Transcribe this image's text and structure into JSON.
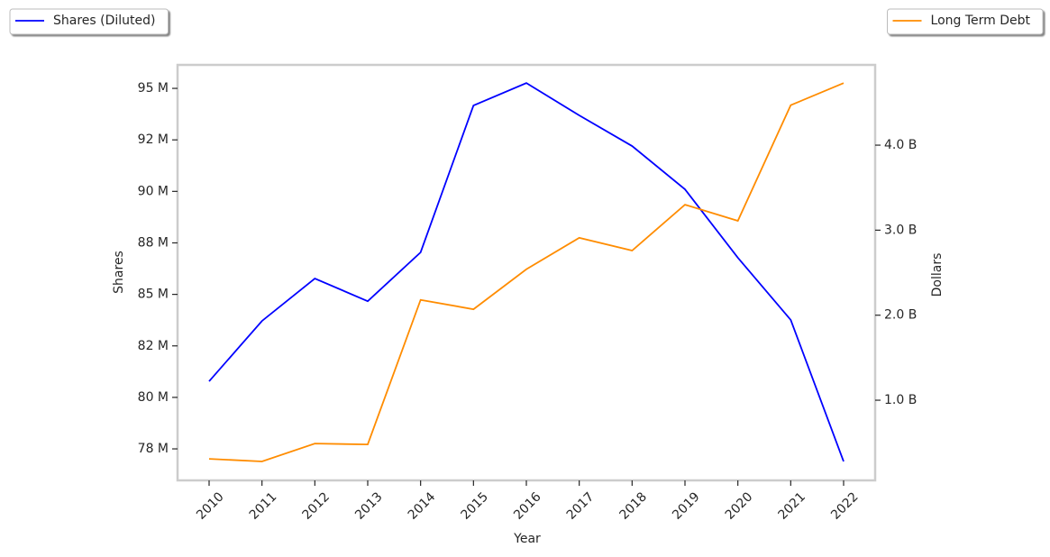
{
  "chart_data": {
    "type": "line",
    "x_label": "Year",
    "y_label": "Shares",
    "y2_label": "Dollars",
    "categories": [
      "2010",
      "2011",
      "2012",
      "2013",
      "2014",
      "2015",
      "2016",
      "2017",
      "2018",
      "2019",
      "2020",
      "2021",
      "2022"
    ],
    "series": [
      {
        "name": "Shares (Diluted)",
        "color": "#0000ff",
        "axis": "y",
        "legend": "upper left",
        "values": [
          80.78,
          83.71,
          85.77,
          84.67,
          87.04,
          94.17,
          95.26,
          93.69,
          92.2,
          90.1,
          86.78,
          83.76,
          76.89
        ]
      },
      {
        "name": "Long Term Debt",
        "color": "#ff8c00",
        "axis": "y2",
        "legend": "upper right",
        "values": [
          0.31,
          0.28,
          0.49,
          0.48,
          2.18,
          2.07,
          2.54,
          2.91,
          2.76,
          3.3,
          3.11,
          4.47,
          4.73
        ]
      }
    ],
    "ylim": [
      75.97,
      96.14
    ],
    "yticks": [
      {
        "value": 77.5,
        "label": "78 M"
      },
      {
        "value": 80,
        "label": "80 M"
      },
      {
        "value": 82.5,
        "label": "82 M"
      },
      {
        "value": 85,
        "label": "85 M"
      },
      {
        "value": 87.5,
        "label": "88 M"
      },
      {
        "value": 90,
        "label": "90 M"
      },
      {
        "value": 92.5,
        "label": "92 M"
      },
      {
        "value": 95,
        "label": "95 M"
      }
    ],
    "y2lim": [
      0.057,
      4.944
    ],
    "y2ticks": [
      {
        "value": 1,
        "label": "1.0 B"
      },
      {
        "value": 2,
        "label": "2.0 B"
      },
      {
        "value": 3,
        "label": "3.0 B"
      },
      {
        "value": 4,
        "label": "4.0 B"
      }
    ],
    "grid": false
  }
}
